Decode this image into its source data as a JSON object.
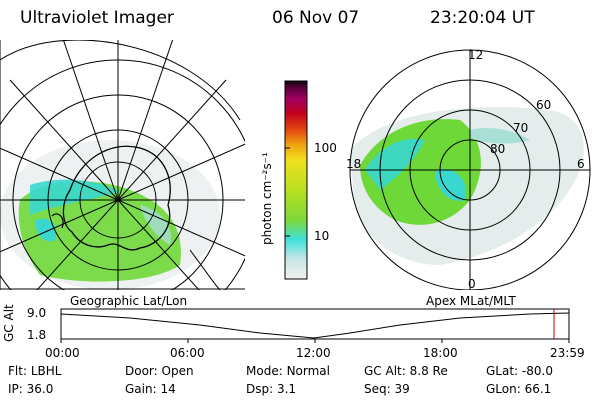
{
  "header": {
    "instrument": "Ultraviolet Imager",
    "date": "06 Nov 07",
    "time": "23:20:04 UT"
  },
  "left_map": {
    "caption": "Geographic Lat/Lon"
  },
  "right_map": {
    "caption": "Apex MLat/MLT",
    "lat_labels": [
      "60",
      "70",
      "80"
    ],
    "mlt_labels": [
      "12",
      "18",
      "6",
      "0"
    ]
  },
  "colorbar": {
    "unit_label": "photon cm⁻²s⁻¹",
    "tick_labels": [
      "100",
      "10"
    ],
    "scale": "log",
    "colors": [
      "#f0f0f0",
      "#c8e6e6",
      "#3ee0d8",
      "#7ed83a",
      "#b8e020",
      "#f0e020",
      "#f0a010",
      "#e04010",
      "#c00020",
      "#a00060",
      "#600040",
      "#100010"
    ]
  },
  "altitude_plot": {
    "ylabel": "GC Alt",
    "y_ticks": [
      "9.0",
      "1.8"
    ],
    "x_ticks": [
      "00:00",
      "06:00",
      "12:00",
      "18:00",
      "23:59"
    ]
  },
  "info": {
    "rows": [
      [
        {
          "label": "Flt:",
          "value": "LBHL"
        },
        {
          "label": "Door:",
          "value": "Open"
        },
        {
          "label": "Mode:",
          "value": "Normal"
        },
        {
          "label": "GC Alt:",
          "value": "8.8 Re"
        },
        {
          "label": "GLat:",
          "value": "-80.0"
        }
      ],
      [
        {
          "label": "IP:",
          "value": "36.0"
        },
        {
          "label": "Gain:",
          "value": "14"
        },
        {
          "label": "Dsp:",
          "value": "3.1"
        },
        {
          "label": "Seq:",
          "value": "39"
        },
        {
          "label": "GLon:",
          "value": "66.1"
        }
      ]
    ]
  },
  "colors": {
    "aurora_green": "#6ed838",
    "aurora_cyan": "#38d8d0",
    "marker_red": "#cc0000"
  }
}
